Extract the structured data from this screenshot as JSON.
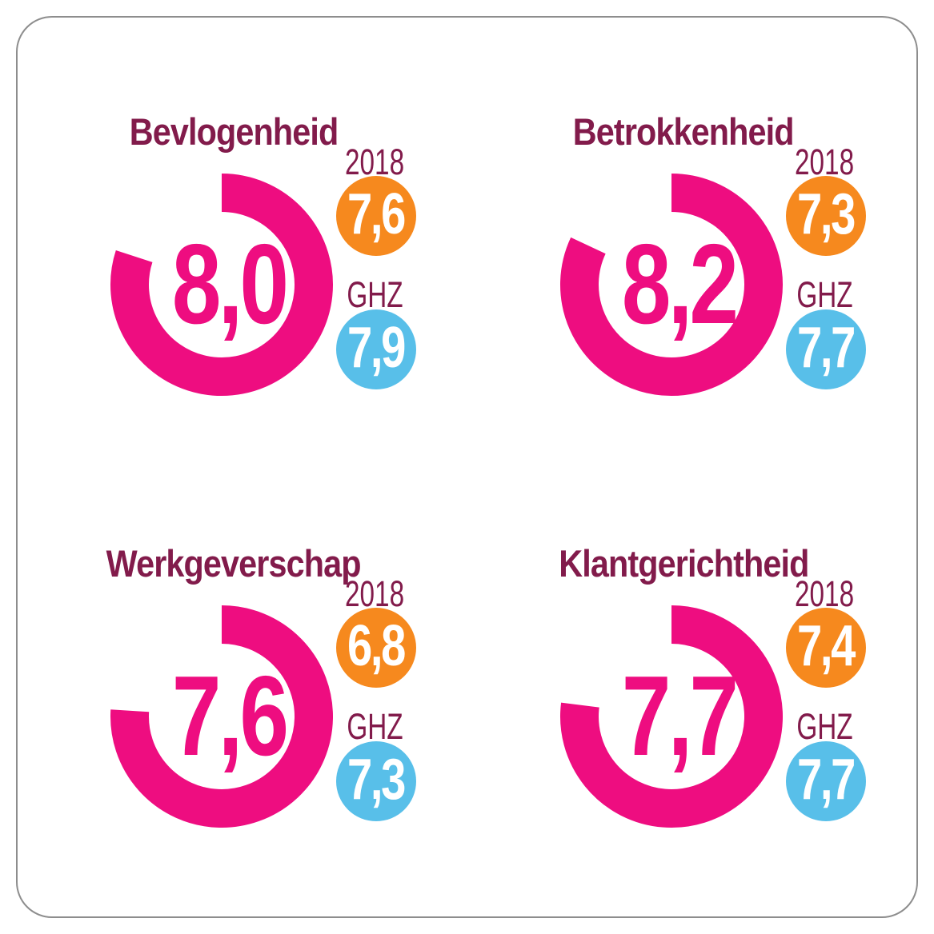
{
  "colors": {
    "pink": "#EE0D80",
    "maroon": "#821B4B",
    "orange": "#F6891E",
    "blue": "#58BFE9",
    "badge_text": "#FFFFFF",
    "card-border": "#8D8D8D",
    "background": "#FFFFFF"
  },
  "chart_data": [
    {
      "type": "pie",
      "variant": "donut-gauge",
      "title": "Bevlogenheid",
      "value": 8.0,
      "max": 10,
      "value_display": "8,0",
      "start_angle_deg": 0,
      "direction": "clockwise",
      "gauge_color": "#EE0D80",
      "badges": [
        {
          "label": "2018",
          "value": 7.6,
          "value_display": "7,6",
          "color": "#F6891E"
        },
        {
          "label": "GHZ",
          "value": 7.9,
          "value_display": "7,9",
          "color": "#58BFE9"
        }
      ]
    },
    {
      "type": "pie",
      "variant": "donut-gauge",
      "title": "Betrokkenheid",
      "value": 8.2,
      "max": 10,
      "value_display": "8,2",
      "start_angle_deg": 0,
      "direction": "clockwise",
      "gauge_color": "#EE0D80",
      "badges": [
        {
          "label": "2018",
          "value": 7.3,
          "value_display": "7,3",
          "color": "#F6891E"
        },
        {
          "label": "GHZ",
          "value": 7.7,
          "value_display": "7,7",
          "color": "#58BFE9"
        }
      ]
    },
    {
      "type": "pie",
      "variant": "donut-gauge",
      "title": "Werkgeverschap",
      "value": 7.6,
      "max": 10,
      "value_display": "7,6",
      "start_angle_deg": 0,
      "direction": "clockwise",
      "gauge_color": "#EE0D80",
      "badges": [
        {
          "label": "2018",
          "value": 6.8,
          "value_display": "6,8",
          "color": "#F6891E"
        },
        {
          "label": "GHZ",
          "value": 7.3,
          "value_display": "7,3",
          "color": "#58BFE9"
        }
      ]
    },
    {
      "type": "pie",
      "variant": "donut-gauge",
      "title": "Klantgerichtheid",
      "value": 7.7,
      "max": 10,
      "value_display": "7,7",
      "start_angle_deg": 0,
      "direction": "clockwise",
      "gauge_color": "#EE0D80",
      "badges": [
        {
          "label": "2018",
          "value": 7.4,
          "value_display": "7,4",
          "color": "#F6891E"
        },
        {
          "label": "GHZ",
          "value": 7.7,
          "value_display": "7,7",
          "color": "#58BFE9"
        }
      ]
    }
  ]
}
